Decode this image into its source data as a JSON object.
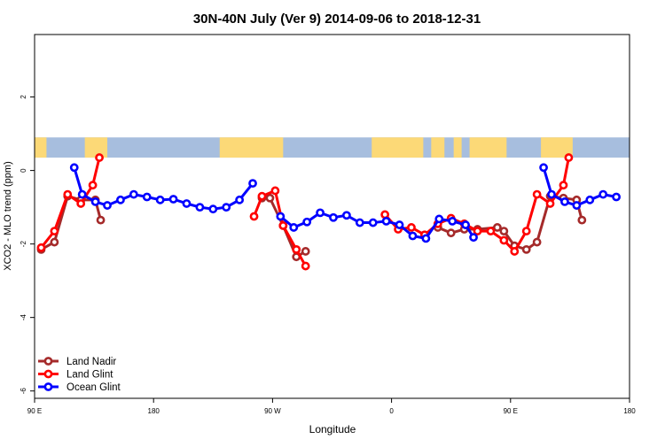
{
  "chart_data": {
    "type": "line",
    "title": "30N-40N July (Ver 9)   2014-09-06 to 2018-12-31",
    "xlabel": "Longitude",
    "ylabel": "XCO2 - MLO trend (ppm)",
    "xlim": [
      90,
      540
    ],
    "ylim": [
      -6.2,
      3.7
    ],
    "x_ticks": [
      {
        "value": 90,
        "label": "90 E"
      },
      {
        "value": 180,
        "label": "180"
      },
      {
        "value": 270,
        "label": "90 W"
      },
      {
        "value": 360,
        "label": "0"
      },
      {
        "value": 450,
        "label": "90 E"
      },
      {
        "value": 540,
        "label": "180"
      }
    ],
    "y_ticks": [
      {
        "value": -6,
        "label": "-6"
      },
      {
        "value": -4,
        "label": "-4"
      },
      {
        "value": -2,
        "label": "-2"
      },
      {
        "value": 0,
        "label": "0"
      },
      {
        "value": 2,
        "label": "2"
      }
    ],
    "map_band": {
      "ymin": 0.35,
      "ymax": 0.9,
      "ocean_color": "#a7bede",
      "land_color": "#fcd977"
    },
    "legend_position": "bottom-left",
    "series": [
      {
        "name": "Land Nadir",
        "color": "#a52a2a",
        "segments": [
          [
            [
              95,
              -2.15
            ],
            [
              105,
              -1.95
            ],
            [
              115,
              -0.7
            ],
            [
              125,
              -0.8
            ],
            [
              136,
              -0.8
            ],
            [
              140,
              -1.35
            ]
          ],
          [
            [
              262,
              -0.75
            ],
            [
              268,
              -0.75
            ],
            [
              278,
              -1.5
            ],
            [
              288,
              -2.35
            ],
            [
              295,
              -2.2
            ]
          ],
          [
            [
              395,
              -1.55
            ],
            [
              405,
              -1.7
            ],
            [
              415,
              -1.6
            ],
            [
              425,
              -1.6
            ],
            [
              440,
              -1.55
            ],
            [
              445,
              -1.65
            ],
            [
              453,
              -2.05
            ],
            [
              462,
              -2.15
            ],
            [
              470,
              -1.95
            ],
            [
              480,
              -0.7
            ],
            [
              490,
              -0.75
            ],
            [
              500,
              -0.8
            ],
            [
              504,
              -1.35
            ]
          ]
        ]
      },
      {
        "name": "Land Glint",
        "color": "#ff0000",
        "segments": [
          [
            [
              95,
              -2.1
            ],
            [
              105,
              -1.65
            ],
            [
              115,
              -0.65
            ],
            [
              125,
              -0.9
            ],
            [
              134,
              -0.4
            ],
            [
              139,
              0.35
            ]
          ],
          [
            [
              256,
              -1.25
            ],
            [
              262,
              -0.7
            ],
            [
              272,
              -0.55
            ],
            [
              278,
              -1.5
            ],
            [
              288,
              -2.15
            ],
            [
              295,
              -2.6
            ]
          ],
          [
            [
              355,
              -1.2
            ],
            [
              365,
              -1.6
            ],
            [
              375,
              -1.55
            ],
            [
              385,
              -1.75
            ],
            [
              395,
              -1.45
            ],
            [
              405,
              -1.3
            ],
            [
              415,
              -1.45
            ],
            [
              425,
              -1.65
            ],
            [
              435,
              -1.65
            ],
            [
              445,
              -1.9
            ],
            [
              453,
              -2.2
            ],
            [
              462,
              -1.65
            ],
            [
              470,
              -0.65
            ],
            [
              480,
              -0.9
            ],
            [
              490,
              -0.4
            ],
            [
              494,
              0.35
            ]
          ]
        ]
      },
      {
        "name": "Ocean Glint",
        "color": "#0000ff",
        "segments": [
          [
            [
              120,
              0.08
            ],
            [
              126,
              -0.65
            ],
            [
              136,
              -0.85
            ],
            [
              145,
              -0.95
            ],
            [
              155,
              -0.8
            ],
            [
              165,
              -0.65
            ],
            [
              175,
              -0.72
            ],
            [
              185,
              -0.8
            ],
            [
              195,
              -0.78
            ],
            [
              205,
              -0.9
            ],
            [
              215,
              -1.0
            ],
            [
              225,
              -1.05
            ],
            [
              235,
              -1.0
            ],
            [
              245,
              -0.8
            ],
            [
              255,
              -0.35
            ]
          ],
          [
            [
              276,
              -1.25
            ],
            [
              286,
              -1.55
            ],
            [
              296,
              -1.4
            ],
            [
              306,
              -1.15
            ],
            [
              316,
              -1.28
            ],
            [
              326,
              -1.22
            ],
            [
              336,
              -1.42
            ],
            [
              346,
              -1.42
            ],
            [
              356,
              -1.38
            ],
            [
              366,
              -1.48
            ],
            [
              376,
              -1.78
            ],
            [
              386,
              -1.85
            ],
            [
              396,
              -1.32
            ],
            [
              406,
              -1.38
            ],
            [
              416,
              -1.48
            ],
            [
              422,
              -1.82
            ]
          ],
          [
            [
              475,
              0.08
            ],
            [
              481,
              -0.65
            ],
            [
              491,
              -0.85
            ],
            [
              500,
              -0.95
            ],
            [
              510,
              -0.8
            ],
            [
              520,
              -0.65
            ],
            [
              530,
              -0.72
            ]
          ]
        ]
      }
    ]
  }
}
